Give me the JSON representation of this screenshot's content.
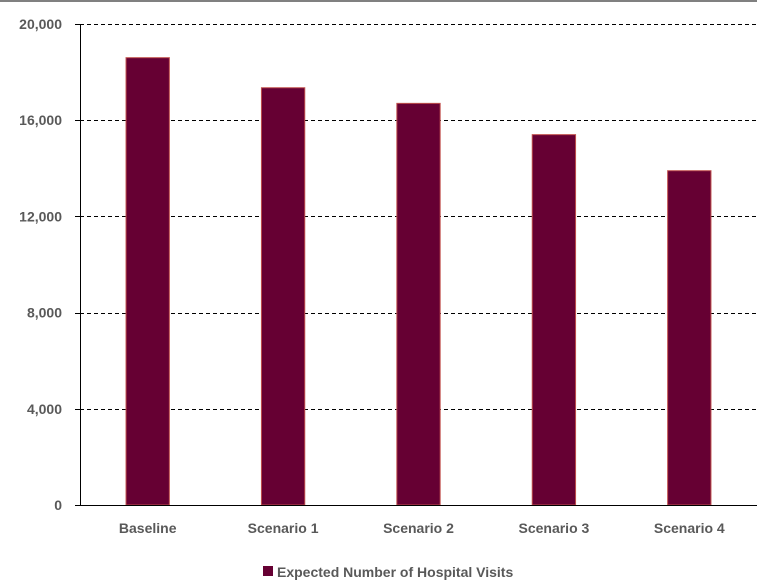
{
  "chart_data": {
    "type": "bar",
    "title": "",
    "xlabel": "",
    "ylabel": "",
    "categories": [
      "Baseline",
      "Scenario 1",
      "Scenario 2",
      "Scenario 3",
      "Scenario 4"
    ],
    "series": [
      {
        "name": "Expected Number of Hospital Visits",
        "values": [
          18600,
          17350,
          16700,
          15400,
          13900
        ],
        "color": "#660033"
      }
    ],
    "ylim": [
      0,
      20000
    ],
    "yticks": [
      0,
      4000,
      8000,
      12000,
      16000,
      20000
    ],
    "ytick_labels": [
      "0",
      "4,000",
      "8,000",
      "12,000",
      "16,000",
      "20,000"
    ],
    "grid": true,
    "legend_position": "bottom"
  }
}
